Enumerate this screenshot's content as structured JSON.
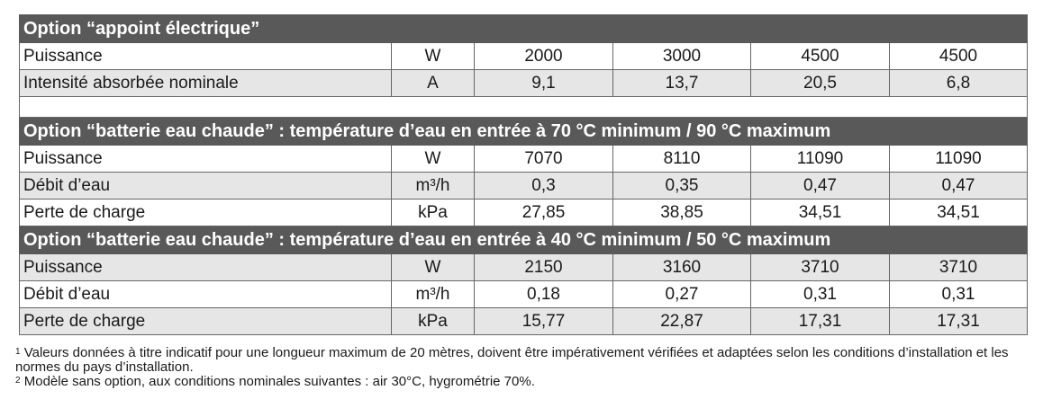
{
  "sections": [
    {
      "title": "Option “appoint électrique”",
      "rows": [
        {
          "label": "Puissance",
          "unit": "W",
          "values": [
            "2000",
            "3000",
            "4500",
            "4500"
          ]
        },
        {
          "label": "Intensité absorbée nominale",
          "unit": "A",
          "values": [
            "9,1",
            "13,7",
            "20,5",
            "6,8"
          ]
        }
      ]
    },
    {
      "title": "Option “batterie eau chaude” : température d’eau en entrée à 70 °C minimum / 90 °C maximum",
      "rows": [
        {
          "label": "Puissance",
          "unit": "W",
          "values": [
            "7070",
            "8110",
            "11090",
            "11090"
          ]
        },
        {
          "label": "Débit d’eau",
          "unit": "m³/h",
          "values": [
            "0,3",
            "0,35",
            "0,47",
            "0,47"
          ]
        },
        {
          "label": "Perte de charge",
          "unit": "kPa",
          "values": [
            "27,85",
            "38,85",
            "34,51",
            "34,51"
          ]
        }
      ]
    },
    {
      "title": "Option “batterie eau chaude” : température d’eau en entrée à 40 °C minimum / 50 °C maximum",
      "rows": [
        {
          "label": "Puissance",
          "unit": "W",
          "values": [
            "2150",
            "3160",
            "3710",
            "3710"
          ]
        },
        {
          "label": "Débit d’eau",
          "unit": "m³/h",
          "values": [
            "0,18",
            "0,27",
            "0,31",
            "0,31"
          ]
        },
        {
          "label": "Perte de charge",
          "unit": "kPa",
          "values": [
            "15,77",
            "22,87",
            "17,31",
            "17,31"
          ]
        }
      ]
    }
  ],
  "footnotes": [
    {
      "mark": "1",
      "text": "Valeurs données à titre indicatif pour une longueur maximum de 20 mètres, doivent être impérativement vérifiées et adaptées selon les conditions d’installation et les normes du pays d’installation."
    },
    {
      "mark": "2",
      "text": "Modèle sans option, aux conditions nominales suivantes : air 30°C, hygrométrie 70%."
    }
  ]
}
